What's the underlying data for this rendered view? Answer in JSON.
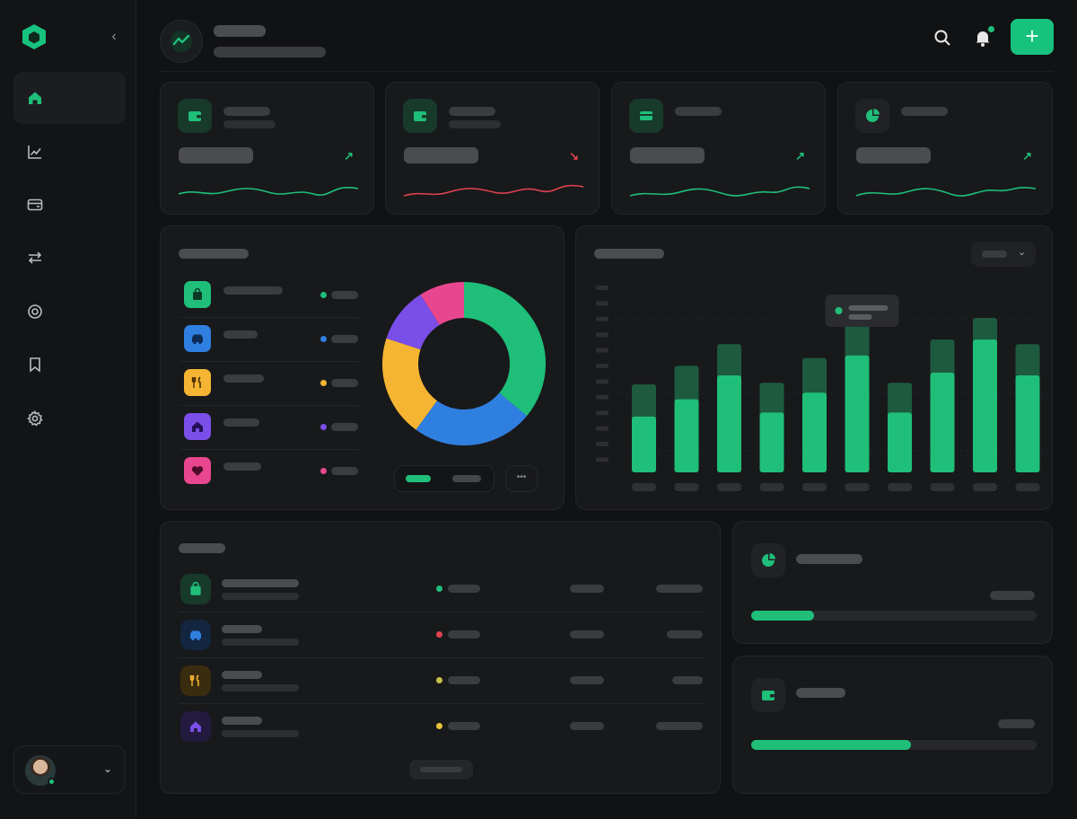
{
  "colors": {
    "background": "#111214",
    "card": "#18191b",
    "accent": "#1fbf7a",
    "negative": "#e0424f",
    "categories": [
      "#1fbf7a",
      "#2f7fe0",
      "#f5b533",
      "#7a4ee8",
      "#e8478f"
    ]
  },
  "sidebar": {
    "nav_icons": [
      "home-icon",
      "chart-line-icon",
      "card-icon",
      "transfer-icon",
      "target-icon",
      "bookmark-icon",
      "gear-icon"
    ],
    "active_index": 0
  },
  "header": {
    "icons": [
      "search-icon",
      "bell-icon",
      "plus-icon"
    ],
    "has_notification": true
  },
  "stats": [
    {
      "icon": "wallet-icon",
      "trend": "up"
    },
    {
      "icon": "wallet-icon",
      "trend": "down"
    },
    {
      "icon": "card-icon",
      "trend": "up"
    },
    {
      "icon": "pie-icon",
      "trend": "up"
    }
  ],
  "categories": {
    "icons": [
      "bag-icon",
      "car-icon",
      "utensils-icon",
      "house-icon",
      "heart-icon"
    ],
    "share": [
      0.36,
      0.24,
      0.2,
      0.11,
      0.09
    ]
  },
  "chart_data": {
    "type": "bar",
    "series_count": 2,
    "values": [
      0.42,
      0.55,
      0.73,
      0.45,
      0.6,
      0.88,
      0.45,
      0.75,
      1.0,
      0.73
    ],
    "values_overlay": [
      0.57,
      0.69,
      0.83,
      0.58,
      0.74,
      0.99,
      0.58,
      0.86,
      1.0,
      0.83
    ]
  },
  "transactions": {
    "icons": [
      "bag-icon",
      "car-icon",
      "utensils-icon",
      "house-icon"
    ],
    "status_colors": [
      "#1fbf7a",
      "#e0424f",
      "#c9c24a",
      "#e8c23a"
    ]
  },
  "goals": [
    {
      "icon": "pie-icon",
      "progress": 0.22
    },
    {
      "icon": "wallet-icon",
      "progress": 0.56
    }
  ]
}
